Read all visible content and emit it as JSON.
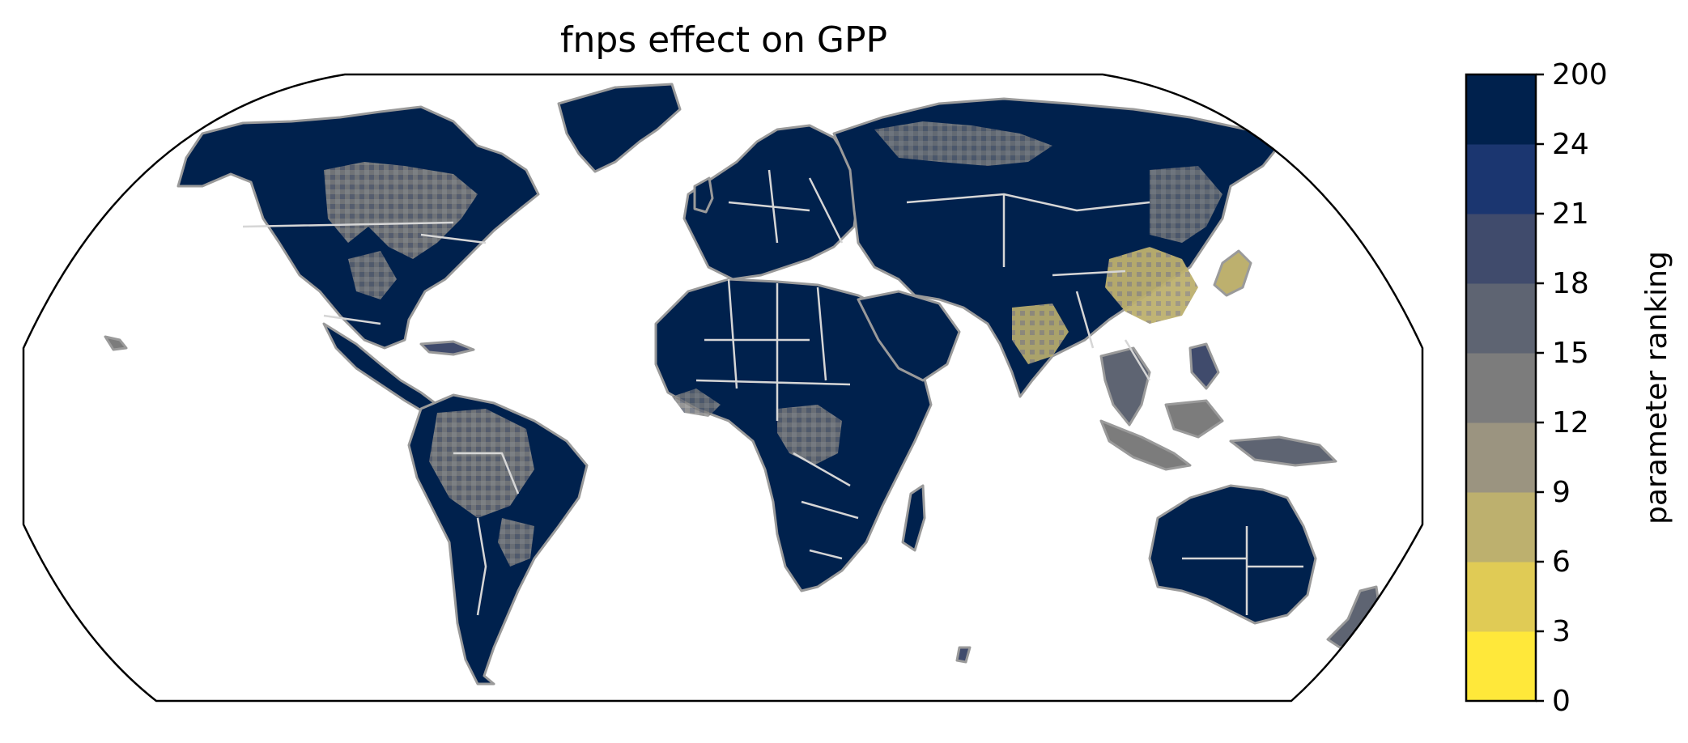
{
  "title": "fnps effect on GPP",
  "colorbar": {
    "label": "parameter ranking",
    "ticks": [
      "0",
      "3",
      "6",
      "9",
      "12",
      "15",
      "18",
      "21",
      "24",
      "200"
    ],
    "colors": [
      "#ffe83a",
      "#e0cb55",
      "#bdb06e",
      "#9b9480",
      "#7c7c7c",
      "#5e6472",
      "#404b6c",
      "#1b3670",
      "#00214d"
    ]
  },
  "colors": {
    "land_dominant": "#00214d",
    "gray": "#7c7c7c",
    "mid_blue": "#404b6c",
    "yellowish": "#bdb06e",
    "coast": "#9a9a9a",
    "border": "#d6d6d6"
  }
}
